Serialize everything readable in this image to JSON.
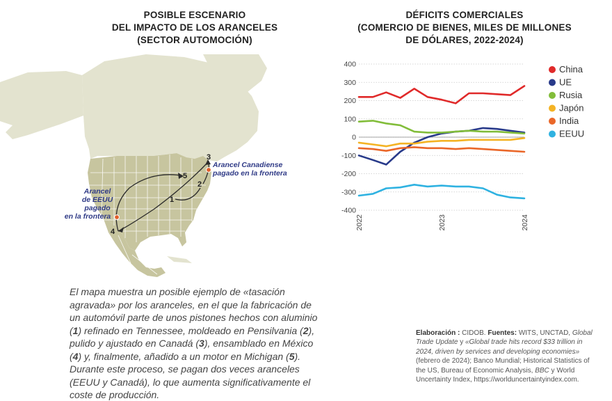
{
  "map_title": [
    "POSIBLE ESCENARIO",
    "DEL IMPACTO DE LOS ARANCELES",
    "(SECTOR AUTOMOCIÓN)"
  ],
  "map_labels": {
    "canada_tariff": [
      "Arancel Canadiense",
      "pagado en la frontera"
    ],
    "us_tariff": [
      "Arancel",
      "de EEUU",
      "pagado",
      "en la frontera"
    ],
    "steps": [
      "1",
      "2",
      "3",
      "4",
      "5"
    ]
  },
  "map_caption_parts": [
    "El mapa muestra un posible ejemplo de «tasación agravada» por los aranceles, en el que la fabricación de un automóvil parte de unos pistones hechos con aluminio (",
    "1",
    ") refinado en Tennessee, moldeado en Pensilvania (",
    "2",
    "), pulido y ajustado en Canadá (",
    "3",
    "), ensamblado en México (",
    "4",
    ") y, finalmente, añadido a un motor en Michigan (",
    "5",
    "). Durante este proceso, se pagan dos veces aranceles (EEUU y Canadá), lo que aumenta significativamente el coste de producción."
  ],
  "chart_title": [
    "DÉFICITS COMERCIALES",
    "(COMERCIO DE BIENES, MILES DE MILLONES",
    "DE DÓLARES, 2022-2024)"
  ],
  "chart_data": {
    "type": "line",
    "title": "Déficits comerciales (comercio de bienes, miles de millones de dólares, 2022-2024)",
    "xlabel": "",
    "ylabel": "",
    "ylim": [
      -400,
      400
    ],
    "xlim": [
      2022,
      2024
    ],
    "yticks": [
      400,
      300,
      200,
      100,
      0,
      -100,
      -200,
      -300,
      -400
    ],
    "xticks": [
      "2022",
      "2023",
      "2024"
    ],
    "grid": true,
    "legend_position": "right",
    "x": [
      2022.0,
      2022.17,
      2022.33,
      2022.5,
      2022.67,
      2022.83,
      2023.0,
      2023.17,
      2023.33,
      2023.5,
      2023.67,
      2023.83,
      2024.0
    ],
    "series": [
      {
        "name": "China",
        "color": "#e02a2a",
        "values": [
          220,
          220,
          245,
          215,
          265,
          220,
          205,
          185,
          240,
          240,
          235,
          230,
          280
        ]
      },
      {
        "name": "UE",
        "color": "#283a8a",
        "values": [
          -100,
          -125,
          -150,
          -80,
          -30,
          0,
          20,
          30,
          35,
          50,
          45,
          35,
          25
        ]
      },
      {
        "name": "Rusia",
        "color": "#82bd3a",
        "values": [
          85,
          90,
          75,
          65,
          30,
          25,
          25,
          30,
          35,
          30,
          30,
          25,
          20
        ]
      },
      {
        "name": "Japón",
        "color": "#f4b324",
        "values": [
          -30,
          -40,
          -50,
          -35,
          -35,
          -25,
          -20,
          -20,
          -15,
          -15,
          -15,
          -15,
          -5
        ]
      },
      {
        "name": "India",
        "color": "#ea6729",
        "values": [
          -60,
          -65,
          -75,
          -60,
          -55,
          -60,
          -60,
          -65,
          -60,
          -65,
          -70,
          -75,
          -80
        ]
      },
      {
        "name": "EEUU",
        "color": "#2fb2e1",
        "values": [
          -320,
          -310,
          -280,
          -275,
          -260,
          -270,
          -265,
          -270,
          -270,
          -280,
          -315,
          -330,
          -335
        ]
      }
    ]
  },
  "source": {
    "label": "Elaboración :",
    "author": "CIDOB.",
    "sources_label": "Fuentes:",
    "text1": "WITS, UNCTAD,",
    "italic1": "Global Trade Update",
    "text2": "y",
    "italic2": "«Global trade hits record $33 trillion in 2024, driven by services and developing economies»",
    "text3": "(febrero de 2024); Banco Mundial; Historical Statistics of the US, Bureau of Economic Analysis,",
    "italic3": "BBC",
    "text4": "y World Uncertainty Index, https://worlduncertaintyindex.com."
  },
  "colors": {
    "land_other": "#e3e3cf",
    "land_us_mx": "#c7c59f",
    "state_border": "#ffffff",
    "route": "#2b2b2b",
    "label_blue": "#2f3a86",
    "tariff_marker": "#e25f2a"
  }
}
